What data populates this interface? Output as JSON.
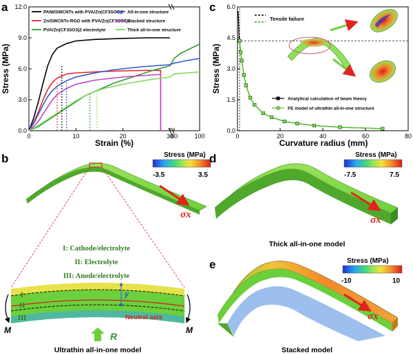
{
  "colors": {
    "panicnt": "#000000",
    "zn_rgo": "#e6242a",
    "pva": "#2e9b2e",
    "all_in_one": "#2f57d6",
    "stacked": "#c43dc4",
    "thick": "#7ed957",
    "beam": "#d8e7c9",
    "arrow_red": "#e0241b",
    "neutral": "#d61e1e"
  },
  "panel_a": {
    "letter": "a",
    "chart_data": {
      "type": "line",
      "xlabel": "Strain (%)",
      "ylabel": "Stress (MPa)",
      "xlim": [
        0,
        100
      ],
      "ylim": [
        0,
        12
      ],
      "axis_break": "between 30 and 80 on x",
      "xticks": [
        "0",
        "10",
        "20",
        "30",
        "80",
        "100"
      ],
      "yticks": [
        "0.0",
        "3.0",
        "6.0",
        "9.0",
        "12.0"
      ],
      "series": [
        {
          "name": "PANI/SWCNTs with PVA/Zn(CF3SO3)2",
          "color_key": "panicnt",
          "x": [
            0,
            1,
            2,
            3,
            4,
            5,
            6,
            8,
            10,
            14,
            20,
            25,
            30,
            30.8,
            30.8
          ],
          "y": [
            0,
            1.2,
            2.8,
            4.6,
            6.3,
            7.4,
            8.0,
            8.45,
            8.7,
            8.85,
            8.95,
            9.0,
            9.0,
            9.0,
            0
          ]
        },
        {
          "name": "Zn/SWCNTs-RGO with PVA/Zn(CF3SO3)2",
          "color_key": "zn_rgo",
          "x": [
            0,
            1,
            2,
            3,
            4,
            5,
            6,
            8,
            10,
            15,
            20,
            25,
            27.5,
            28,
            28
          ],
          "y": [
            0,
            0.8,
            1.8,
            3.0,
            4.0,
            4.7,
            5.1,
            5.5,
            5.6,
            5.72,
            5.8,
            5.85,
            5.85,
            5.85,
            0
          ]
        },
        {
          "name": "PVA/Zn(CF3SO3)2 electrolyte",
          "color_key": "pva",
          "x": [
            0,
            2,
            4,
            6,
            8,
            10,
            12,
            15,
            18,
            22,
            26,
            30,
            80,
            85,
            100
          ],
          "y": [
            0,
            0.4,
            1.0,
            1.6,
            2.2,
            2.8,
            3.4,
            4.0,
            4.6,
            5.2,
            5.8,
            6.3,
            7.0,
            7.5,
            8.4
          ]
        },
        {
          "name": "All-in-one structure",
          "color_key": "all_in_one",
          "x": [
            0,
            1,
            2,
            3,
            4,
            5,
            6,
            7,
            8,
            10,
            14,
            18,
            24,
            30,
            80,
            90,
            100
          ],
          "y": [
            0,
            0.7,
            1.6,
            2.5,
            3.3,
            3.9,
            4.3,
            4.6,
            4.85,
            5.2,
            5.6,
            5.9,
            6.2,
            6.4,
            6.55,
            6.8,
            7.0
          ]
        },
        {
          "name": "Stacked structure",
          "color_key": "stacked",
          "x": [
            0,
            1,
            2,
            3,
            4,
            5,
            6,
            8,
            10,
            14,
            20,
            26,
            28,
            28
          ],
          "y": [
            0,
            0.4,
            0.9,
            1.6,
            2.3,
            3.0,
            3.5,
            4.1,
            4.5,
            4.9,
            5.2,
            5.4,
            5.45,
            0
          ]
        },
        {
          "name": "Thick all-in-one structure",
          "color_key": "thick",
          "x": [
            0,
            2,
            4,
            6,
            8,
            10,
            12,
            14,
            16,
            20,
            25,
            30,
            80,
            90,
            100
          ],
          "y": [
            0,
            0.5,
            1.1,
            1.7,
            2.3,
            2.9,
            3.4,
            3.8,
            4.1,
            4.5,
            4.9,
            5.2,
            5.5,
            5.6,
            5.7
          ]
        }
      ],
      "failure_markers": [
        {
          "x": 7,
          "color_key": "panicnt",
          "y_top": 6.4
        },
        {
          "x": 6,
          "color_key": "zn_rgo",
          "y_top": 4.8
        },
        {
          "x": 8,
          "color_key": "all_in_one",
          "y_top": 4.8
        },
        {
          "x": 13,
          "color_key": "pva",
          "y_top": 3.6
        },
        {
          "x": 14.5,
          "color_key": "thick",
          "y_top": 3.8
        }
      ]
    }
  },
  "panel_c": {
    "letter": "c",
    "inset_label": "Tensile failure",
    "chart_data": {
      "type": "line",
      "xlabel": "Curvature radius (mm)",
      "ylabel": "Stress (MPa)",
      "xlim": [
        0,
        80
      ],
      "ylim": [
        0,
        6.0
      ],
      "xticks": [
        "0",
        "20",
        "40",
        "60",
        "80"
      ],
      "yticks": [
        "0.0",
        "1.5",
        "3.0",
        "4.5",
        "6.0"
      ],
      "tensile_failure_y": 4.35,
      "series": [
        {
          "name": "Analytical calculation of beam theory",
          "color_key": "panicnt",
          "x": [
            0.3,
            0.5,
            0.7,
            1.0,
            1.5,
            2.0,
            3.0,
            4.0,
            6.0,
            8.0,
            12.0,
            16.0,
            22.0,
            28.0,
            36.0,
            48.0,
            68.0
          ],
          "y": [
            5.8,
            5.2,
            4.6,
            4.35,
            3.8,
            3.4,
            2.7,
            2.2,
            1.6,
            1.25,
            0.85,
            0.65,
            0.45,
            0.35,
            0.25,
            0.17,
            0.1
          ]
        },
        {
          "name": "FE model of ultrathin all-in-one structure",
          "color_key": "pva",
          "x": [
            1.0,
            1.5,
            2.0,
            3.0,
            4.0,
            6.0,
            8.0,
            12.0,
            16.0,
            22.0,
            28.0,
            36.0,
            48.0,
            68.0
          ],
          "y": [
            4.35,
            3.8,
            3.4,
            2.7,
            2.2,
            1.6,
            1.25,
            0.85,
            0.65,
            0.45,
            0.35,
            0.25,
            0.17,
            0.1
          ]
        }
      ]
    }
  },
  "panel_b": {
    "letter": "b",
    "colorbar": {
      "title": "Stress (MPa)",
      "min": "-3.5",
      "max": "3.5"
    },
    "sigma": "σx",
    "regions": [
      "I: Cathode/electrolyte",
      "II: Electrolyte",
      "III: Anode/electrolyte"
    ],
    "layer_labels": [
      "I",
      "II",
      "III"
    ],
    "y_label": "y",
    "neutral_axis": "Neutral axis",
    "moment": "M",
    "reaction": "R",
    "caption": "Ultrathin all-in-one model"
  },
  "panel_d": {
    "letter": "d",
    "colorbar": {
      "title": "Stress (MPa)",
      "min": "-7.5",
      "max": "7.5"
    },
    "sigma": "σx",
    "caption": "Thick all-in-one model"
  },
  "panel_e": {
    "letter": "e",
    "colorbar": {
      "title": "Stress (MPa)",
      "min": "-10",
      "max": "10"
    },
    "sigma": "σx",
    "caption": "Stacked model"
  }
}
